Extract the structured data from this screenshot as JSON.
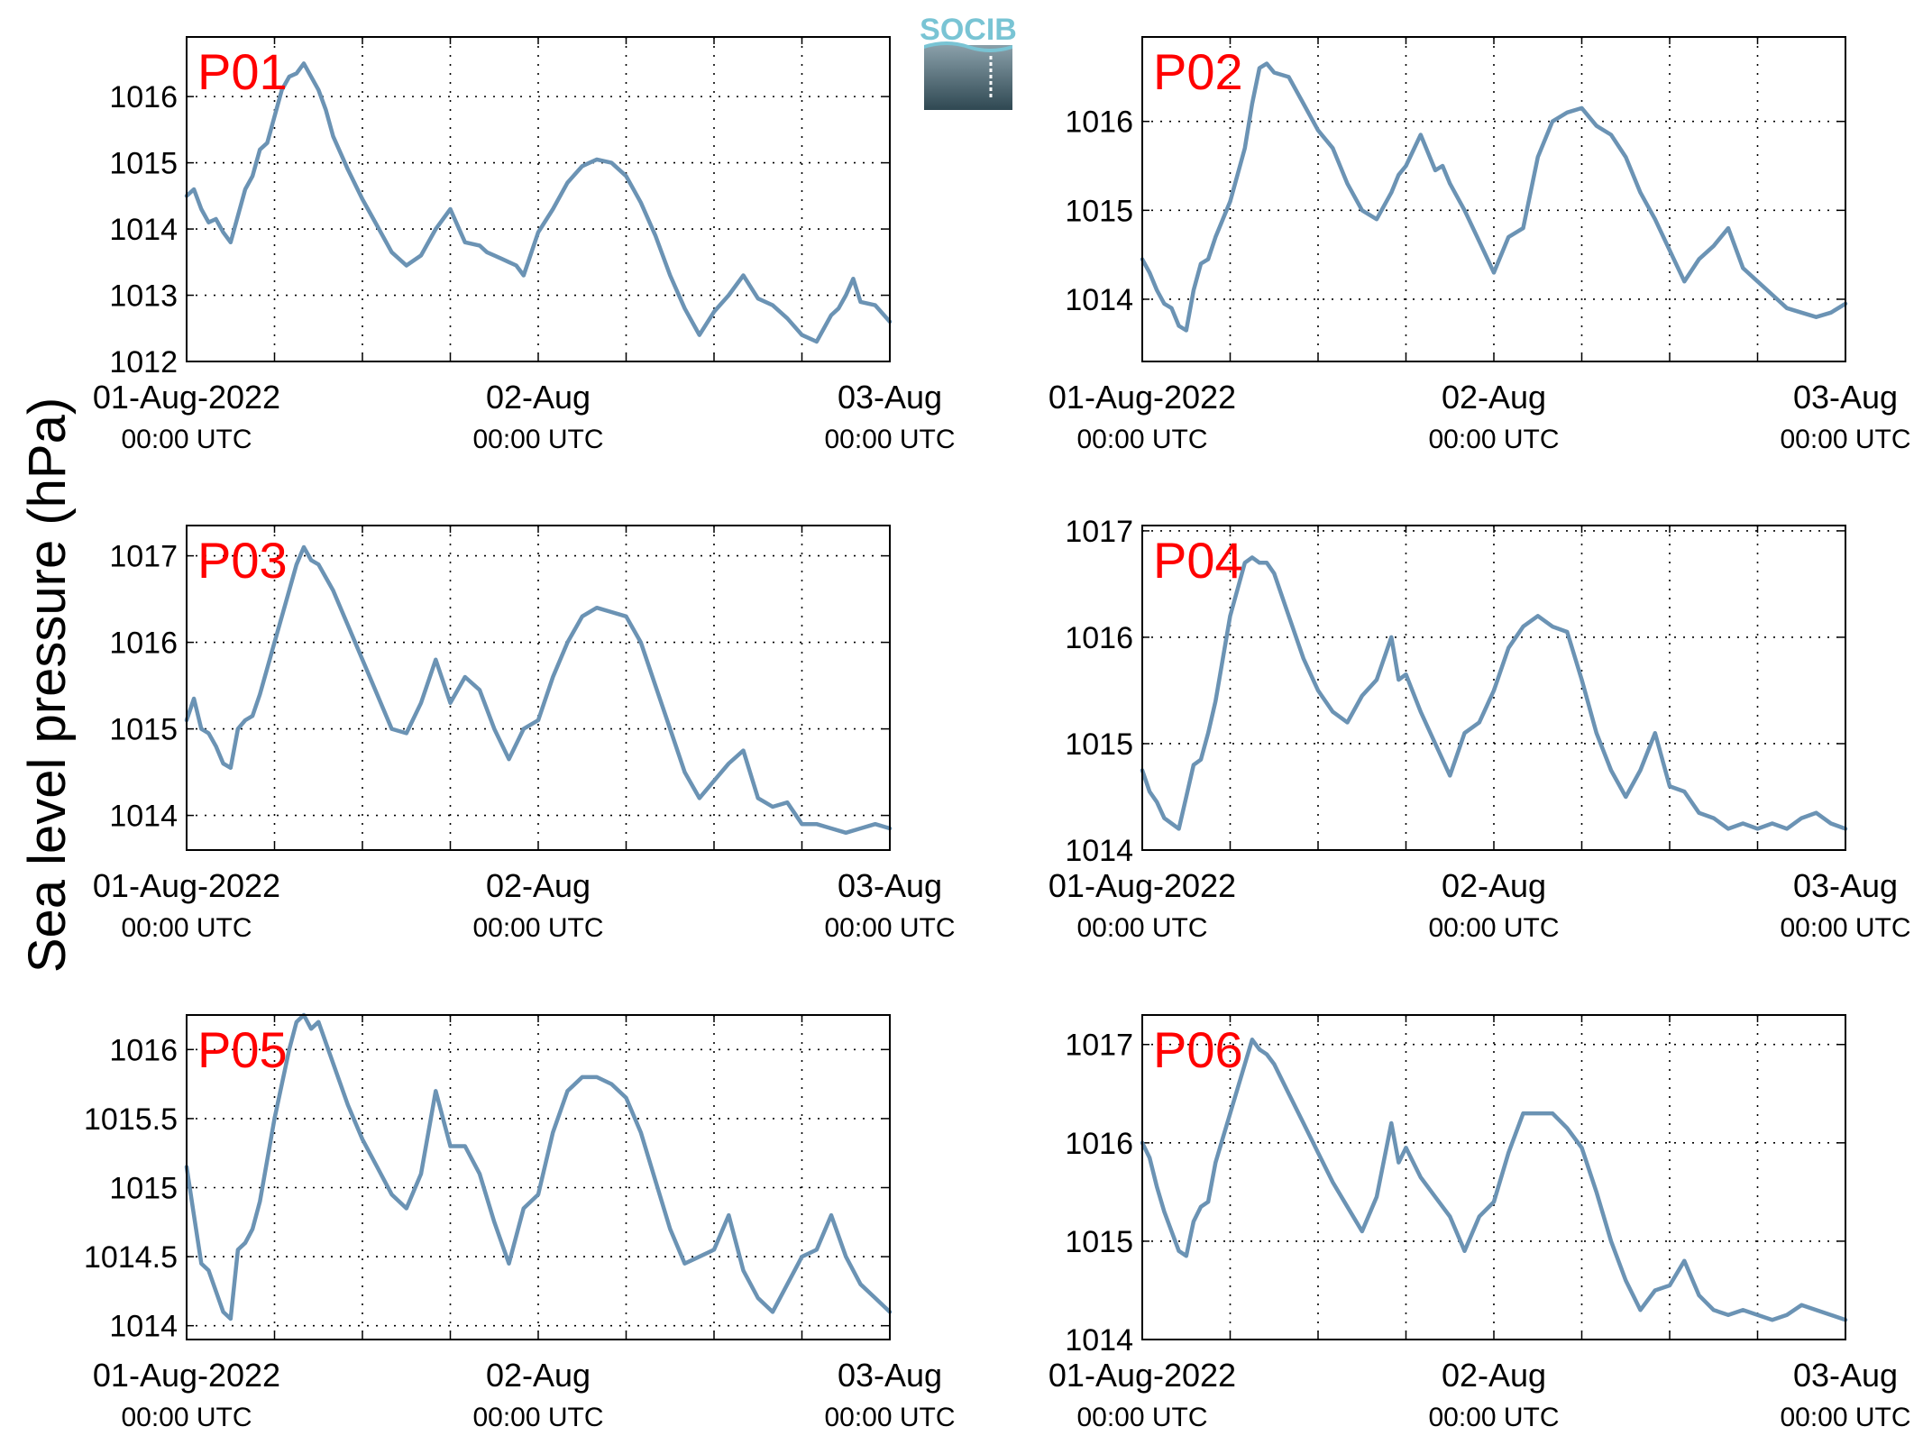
{
  "ylabel": "Sea level pressure (hPa)",
  "logo": {
    "text": "SOCIB",
    "colors": {
      "top": "#79c4d4",
      "mid": "#8aa0aa",
      "bottom": "#2f4852"
    }
  },
  "line_color": "#6b93b4",
  "label_color": "#ff0000",
  "x_ticks": [
    {
      "day": "01-Aug-2022",
      "time": "00:00 UTC",
      "hour": 0
    },
    {
      "day": "02-Aug",
      "time": "00:00 UTC",
      "hour": 24
    },
    {
      "day": "03-Aug",
      "time": "00:00 UTC",
      "hour": 48
    }
  ],
  "chart_data": [
    {
      "type": "line",
      "name": "P01",
      "xlim": [
        0,
        48
      ],
      "ylim": [
        1012,
        1016.9
      ],
      "yticks": [
        1012,
        1013,
        1014,
        1015,
        1016
      ],
      "yticklabels": [
        "1012",
        "1013",
        "1014",
        "1015",
        "1016"
      ],
      "x": [
        0,
        0.5,
        1,
        1.5,
        2,
        2.5,
        3,
        3.5,
        4,
        4.5,
        5,
        5.5,
        6,
        6.5,
        7,
        7.5,
        8,
        8.5,
        9,
        9.5,
        10,
        11,
        12,
        13,
        14,
        15,
        16,
        17,
        18,
        19,
        20,
        20.5,
        21,
        21.5,
        22,
        22.5,
        23,
        24,
        25,
        26,
        27,
        27.5,
        28,
        29,
        30,
        31,
        32,
        33,
        34,
        35,
        36,
        37,
        38,
        39,
        40,
        41,
        42,
        43,
        44,
        44.5,
        45,
        45.5,
        46,
        47,
        48
      ],
      "values": [
        1014.5,
        1014.6,
        1014.3,
        1014.1,
        1014.15,
        1013.95,
        1013.8,
        1014.2,
        1014.6,
        1014.8,
        1015.2,
        1015.3,
        1015.7,
        1016.1,
        1016.3,
        1016.35,
        1016.5,
        1016.3,
        1016.1,
        1015.8,
        1015.4,
        1014.9,
        1014.45,
        1014.05,
        1013.65,
        1013.45,
        1013.6,
        1014.0,
        1014.3,
        1013.8,
        1013.75,
        1013.65,
        1013.6,
        1013.55,
        1013.5,
        1013.45,
        1013.3,
        1013.95,
        1014.3,
        1014.7,
        1014.95,
        1015.0,
        1015.05,
        1015.0,
        1014.8,
        1014.4,
        1013.9,
        1013.3,
        1012.8,
        1012.4,
        1012.75,
        1013.0,
        1013.3,
        1012.95,
        1012.85,
        1012.65,
        1012.4,
        1012.3,
        1012.7,
        1012.8,
        1013.0,
        1013.25,
        1012.9,
        1012.85,
        1012.6
      ]
    },
    {
      "type": "line",
      "name": "P02",
      "xlim": [
        0,
        48
      ],
      "ylim": [
        1013.3,
        1016.95
      ],
      "yticks": [
        1014,
        1015,
        1016
      ],
      "yticklabels": [
        "1014",
        "1015",
        "1016"
      ],
      "x": [
        0,
        0.5,
        1,
        1.5,
        2,
        2.5,
        3,
        3.5,
        4,
        4.5,
        5,
        6,
        7,
        7.5,
        8,
        8.5,
        9,
        10,
        11,
        12,
        13,
        14,
        15,
        16,
        17,
        17.5,
        18,
        19,
        20,
        20.5,
        21,
        22,
        23,
        24,
        25,
        26,
        27,
        28,
        29,
        30,
        31,
        32,
        33,
        34,
        35,
        36,
        37,
        38,
        39,
        40,
        41,
        42,
        43,
        44,
        45,
        46,
        47,
        48
      ],
      "values": [
        1014.45,
        1014.3,
        1014.1,
        1013.95,
        1013.9,
        1013.7,
        1013.65,
        1014.1,
        1014.4,
        1014.45,
        1014.7,
        1015.1,
        1015.7,
        1016.2,
        1016.6,
        1016.65,
        1016.55,
        1016.5,
        1016.2,
        1015.9,
        1015.7,
        1015.3,
        1015.0,
        1014.9,
        1015.2,
        1015.4,
        1015.5,
        1015.85,
        1015.45,
        1015.5,
        1015.3,
        1015.0,
        1014.65,
        1014.3,
        1014.7,
        1014.8,
        1015.6,
        1016.0,
        1016.1,
        1016.15,
        1015.95,
        1015.85,
        1015.6,
        1015.2,
        1014.9,
        1014.55,
        1014.2,
        1014.45,
        1014.6,
        1014.8,
        1014.35,
        1014.2,
        1014.05,
        1013.9,
        1013.85,
        1013.8,
        1013.85,
        1013.95
      ]
    },
    {
      "type": "line",
      "name": "P03",
      "xlim": [
        0,
        48
      ],
      "ylim": [
        1013.6,
        1017.35
      ],
      "yticks": [
        1014,
        1015,
        1016,
        1017
      ],
      "yticklabels": [
        "1014",
        "1015",
        "1016",
        "1017"
      ],
      "x": [
        0,
        0.5,
        1,
        1.5,
        2,
        2.5,
        3,
        3.5,
        4,
        4.5,
        5,
        6,
        7,
        7.5,
        8,
        8.5,
        9,
        10,
        11,
        12,
        13,
        14,
        15,
        16,
        17,
        18,
        19,
        20,
        21,
        22,
        23,
        24,
        25,
        26,
        27,
        28,
        29,
        30,
        31,
        32,
        33,
        34,
        35,
        36,
        37,
        38,
        39,
        40,
        41,
        42,
        43,
        44,
        45,
        46,
        47,
        48
      ],
      "values": [
        1015.1,
        1015.35,
        1015.0,
        1014.95,
        1014.8,
        1014.6,
        1014.55,
        1015.0,
        1015.1,
        1015.15,
        1015.4,
        1016.0,
        1016.6,
        1016.9,
        1017.1,
        1016.95,
        1016.9,
        1016.6,
        1016.2,
        1015.8,
        1015.4,
        1015.0,
        1014.95,
        1015.3,
        1015.8,
        1015.3,
        1015.6,
        1015.45,
        1015.0,
        1014.65,
        1015.0,
        1015.1,
        1015.6,
        1016.0,
        1016.3,
        1016.4,
        1016.35,
        1016.3,
        1016.0,
        1015.5,
        1015.0,
        1014.5,
        1014.2,
        1014.4,
        1014.6,
        1014.75,
        1014.2,
        1014.1,
        1014.15,
        1013.9,
        1013.9,
        1013.85,
        1013.8,
        1013.85,
        1013.9,
        1013.85
      ]
    },
    {
      "type": "line",
      "name": "P04",
      "xlim": [
        0,
        48
      ],
      "ylim": [
        1014,
        1017.05
      ],
      "yticks": [
        1014,
        1015,
        1016,
        1017
      ],
      "yticklabels": [
        "1014",
        "1015",
        "1016",
        "1017"
      ],
      "x": [
        0,
        0.5,
        1,
        1.5,
        2,
        2.5,
        3,
        3.5,
        4,
        4.5,
        5,
        6,
        7,
        7.5,
        8,
        8.5,
        9,
        10,
        11,
        12,
        13,
        14,
        15,
        16,
        17,
        17.5,
        18,
        19,
        20,
        21,
        22,
        23,
        24,
        25,
        26,
        27,
        28,
        29,
        30,
        31,
        32,
        33,
        34,
        35,
        36,
        37,
        38,
        39,
        40,
        41,
        42,
        43,
        44,
        45,
        46,
        47,
        48
      ],
      "values": [
        1014.75,
        1014.55,
        1014.45,
        1014.3,
        1014.25,
        1014.2,
        1014.5,
        1014.8,
        1014.85,
        1015.1,
        1015.4,
        1016.2,
        1016.7,
        1016.75,
        1016.7,
        1016.7,
        1016.6,
        1016.2,
        1015.8,
        1015.5,
        1015.3,
        1015.2,
        1015.45,
        1015.6,
        1016.0,
        1015.6,
        1015.65,
        1015.3,
        1015.0,
        1014.7,
        1015.1,
        1015.2,
        1015.5,
        1015.9,
        1016.1,
        1016.2,
        1016.1,
        1016.05,
        1015.6,
        1015.1,
        1014.75,
        1014.5,
        1014.75,
        1015.1,
        1014.6,
        1014.55,
        1014.35,
        1014.3,
        1014.2,
        1014.25,
        1014.2,
        1014.25,
        1014.2,
        1014.3,
        1014.35,
        1014.25,
        1014.2
      ]
    },
    {
      "type": "line",
      "name": "P05",
      "xlim": [
        0,
        48
      ],
      "ylim": [
        1013.9,
        1016.25
      ],
      "yticks": [
        1014,
        1014.5,
        1015,
        1015.5,
        1016
      ],
      "yticklabels": [
        "1014",
        "1014.5",
        "1015",
        "1015.5",
        "1016"
      ],
      "x": [
        0,
        0.5,
        1,
        1.5,
        2,
        2.5,
        3,
        3.5,
        4,
        4.5,
        5,
        6,
        7,
        7.5,
        8,
        8.5,
        9,
        10,
        11,
        12,
        13,
        14,
        15,
        16,
        17,
        18,
        19,
        20,
        21,
        22,
        23,
        24,
        25,
        26,
        27,
        28,
        29,
        30,
        31,
        32,
        33,
        34,
        35,
        36,
        37,
        38,
        39,
        40,
        41,
        42,
        43,
        44,
        45,
        46,
        47,
        48
      ],
      "values": [
        1015.15,
        1014.8,
        1014.45,
        1014.4,
        1014.25,
        1014.1,
        1014.05,
        1014.55,
        1014.6,
        1014.7,
        1014.9,
        1015.5,
        1016.0,
        1016.2,
        1016.25,
        1016.15,
        1016.2,
        1015.9,
        1015.6,
        1015.35,
        1015.15,
        1014.95,
        1014.85,
        1015.1,
        1015.7,
        1015.3,
        1015.3,
        1015.1,
        1014.75,
        1014.45,
        1014.85,
        1014.95,
        1015.4,
        1015.7,
        1015.8,
        1015.8,
        1015.75,
        1015.65,
        1015.4,
        1015.05,
        1014.7,
        1014.45,
        1014.5,
        1014.55,
        1014.8,
        1014.4,
        1014.2,
        1014.1,
        1014.3,
        1014.5,
        1014.55,
        1014.8,
        1014.5,
        1014.3,
        1014.2,
        1014.1
      ]
    },
    {
      "type": "line",
      "name": "P06",
      "xlim": [
        0,
        48
      ],
      "ylim": [
        1014,
        1017.3
      ],
      "yticks": [
        1014,
        1015,
        1016,
        1017
      ],
      "yticklabels": [
        "1014",
        "1015",
        "1016",
        "1017"
      ],
      "x": [
        0,
        0.5,
        1,
        1.5,
        2,
        2.5,
        3,
        3.5,
        4,
        4.5,
        5,
        6,
        7,
        7.5,
        8,
        8.5,
        9,
        10,
        11,
        12,
        13,
        14,
        15,
        16,
        17,
        17.5,
        18,
        19,
        20,
        21,
        22,
        23,
        24,
        25,
        26,
        27,
        28,
        29,
        30,
        31,
        32,
        33,
        34,
        35,
        36,
        37,
        38,
        39,
        40,
        41,
        42,
        43,
        44,
        45,
        46,
        47,
        48
      ],
      "values": [
        1016.0,
        1015.85,
        1015.55,
        1015.3,
        1015.1,
        1014.9,
        1014.85,
        1015.2,
        1015.35,
        1015.4,
        1015.8,
        1016.3,
        1016.8,
        1017.05,
        1016.95,
        1016.9,
        1016.8,
        1016.5,
        1016.2,
        1015.9,
        1015.6,
        1015.35,
        1015.1,
        1015.45,
        1016.2,
        1015.8,
        1015.95,
        1015.65,
        1015.45,
        1015.25,
        1014.9,
        1015.25,
        1015.4,
        1015.9,
        1016.3,
        1016.3,
        1016.3,
        1016.15,
        1015.95,
        1015.5,
        1015.0,
        1014.6,
        1014.3,
        1014.5,
        1014.55,
        1014.8,
        1014.45,
        1014.3,
        1014.25,
        1014.3,
        1014.25,
        1014.2,
        1014.25,
        1014.35,
        1014.3,
        1014.25,
        1014.2
      ]
    }
  ]
}
